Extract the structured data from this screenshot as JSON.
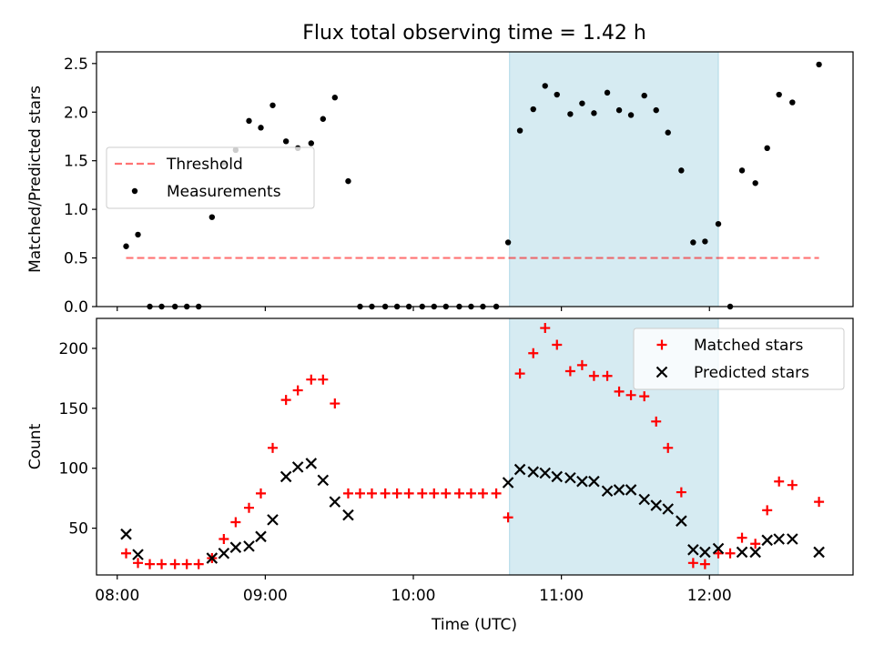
{
  "title": "Flux total observing time = 1.42 h",
  "colors": {
    "highlight": "#add8e6",
    "threshold": "#ff0000",
    "measurements": "#000000",
    "matched": "#ff0000",
    "predicted": "#000000"
  },
  "x_axis": {
    "label": "Time (UTC)",
    "ticks": [
      {
        "x": 8.0,
        "label": "08:00"
      },
      {
        "x": 9.0,
        "label": "09:00"
      },
      {
        "x": 10.0,
        "label": "10:00"
      },
      {
        "x": 11.0,
        "label": "11:00"
      },
      {
        "x": 12.0,
        "label": "12:00"
      }
    ]
  },
  "highlight_span": [
    10.65,
    12.06
  ],
  "chart_data": [
    {
      "type": "scatter",
      "ylabel": "Matched/Predicted stars",
      "xlim": [
        7.86,
        12.97
      ],
      "ylim": [
        0,
        2.62
      ],
      "yticks": [
        0.0,
        0.5,
        1.0,
        1.5,
        2.0,
        2.5
      ],
      "ytick_labels": [
        "0.0",
        "0.5",
        "1.0",
        "1.5",
        "2.0",
        "2.5"
      ],
      "legend": "left",
      "threshold": {
        "name": "Threshold",
        "y": 0.5,
        "x_range": [
          8.06,
          12.74
        ]
      },
      "series": [
        {
          "name": "Measurements",
          "marker": "dot",
          "points": [
            [
              8.06,
              0.62
            ],
            [
              8.14,
              0.74
            ],
            [
              8.22,
              0
            ],
            [
              8.3,
              0
            ],
            [
              8.39,
              0
            ],
            [
              8.47,
              0
            ],
            [
              8.55,
              0
            ],
            [
              8.64,
              0.92
            ],
            [
              8.72,
              1.48
            ],
            [
              8.8,
              1.61
            ],
            [
              8.89,
              1.91
            ],
            [
              8.97,
              1.84
            ],
            [
              9.05,
              2.07
            ],
            [
              9.14,
              1.7
            ],
            [
              9.22,
              1.63
            ],
            [
              9.31,
              1.68
            ],
            [
              9.39,
              1.93
            ],
            [
              9.47,
              2.15
            ],
            [
              9.56,
              1.29
            ],
            [
              9.64,
              0
            ],
            [
              9.72,
              0
            ],
            [
              9.81,
              0
            ],
            [
              9.89,
              0
            ],
            [
              9.97,
              0
            ],
            [
              10.06,
              0
            ],
            [
              10.14,
              0
            ],
            [
              10.22,
              0
            ],
            [
              10.31,
              0
            ],
            [
              10.39,
              0
            ],
            [
              10.47,
              0
            ],
            [
              10.56,
              0
            ],
            [
              10.64,
              0.66
            ],
            [
              10.72,
              1.81
            ],
            [
              10.81,
              2.03
            ],
            [
              10.89,
              2.27
            ],
            [
              10.97,
              2.18
            ],
            [
              11.06,
              1.98
            ],
            [
              11.14,
              2.09
            ],
            [
              11.22,
              1.99
            ],
            [
              11.31,
              2.2
            ],
            [
              11.39,
              2.02
            ],
            [
              11.47,
              1.97
            ],
            [
              11.56,
              2.17
            ],
            [
              11.64,
              2.02
            ],
            [
              11.72,
              1.79
            ],
            [
              11.81,
              1.4
            ],
            [
              11.89,
              0.66
            ],
            [
              11.97,
              0.67
            ],
            [
              12.06,
              0.85
            ],
            [
              12.14,
              0
            ],
            [
              12.22,
              1.4
            ],
            [
              12.31,
              1.27
            ],
            [
              12.39,
              1.63
            ],
            [
              12.47,
              2.18
            ],
            [
              12.56,
              2.1
            ],
            [
              12.74,
              2.49
            ]
          ]
        }
      ]
    },
    {
      "type": "scatter",
      "ylabel": "Count",
      "xlim": [
        7.86,
        12.97
      ],
      "ylim": [
        11,
        225
      ],
      "yticks": [
        50,
        100,
        150,
        200
      ],
      "ytick_labels": [
        "50",
        "100",
        "150",
        "200"
      ],
      "legend": "top-right",
      "series": [
        {
          "name": "Matched stars",
          "marker": "plus",
          "points": [
            [
              8.06,
              29
            ],
            [
              8.14,
              21
            ],
            [
              8.22,
              20
            ],
            [
              8.3,
              20
            ],
            [
              8.39,
              20
            ],
            [
              8.47,
              20
            ],
            [
              8.55,
              20
            ],
            [
              8.64,
              25
            ],
            [
              8.72,
              41
            ],
            [
              8.8,
              55
            ],
            [
              8.89,
              67
            ],
            [
              8.97,
              79
            ],
            [
              9.05,
              117
            ],
            [
              9.14,
              157
            ],
            [
              9.22,
              165
            ],
            [
              9.31,
              174
            ],
            [
              9.39,
              174
            ],
            [
              9.47,
              154
            ],
            [
              9.56,
              79
            ],
            [
              9.64,
              79
            ],
            [
              9.72,
              79
            ],
            [
              9.81,
              79
            ],
            [
              9.89,
              79
            ],
            [
              9.97,
              79
            ],
            [
              10.06,
              79
            ],
            [
              10.14,
              79
            ],
            [
              10.22,
              79
            ],
            [
              10.31,
              79
            ],
            [
              10.39,
              79
            ],
            [
              10.47,
              79
            ],
            [
              10.56,
              79
            ],
            [
              10.64,
              59
            ],
            [
              10.72,
              179
            ],
            [
              10.81,
              196
            ],
            [
              10.89,
              217
            ],
            [
              10.97,
              203
            ],
            [
              11.06,
              181
            ],
            [
              11.14,
              186
            ],
            [
              11.22,
              177
            ],
            [
              11.31,
              177
            ],
            [
              11.39,
              164
            ],
            [
              11.47,
              161
            ],
            [
              11.56,
              160
            ],
            [
              11.64,
              139
            ],
            [
              11.72,
              117
            ],
            [
              11.81,
              80
            ],
            [
              11.89,
              21
            ],
            [
              11.97,
              20
            ],
            [
              12.06,
              29
            ],
            [
              12.14,
              29
            ],
            [
              12.22,
              42
            ],
            [
              12.31,
              37
            ],
            [
              12.39,
              65
            ],
            [
              12.47,
              89
            ],
            [
              12.56,
              86
            ],
            [
              12.74,
              72
            ]
          ]
        },
        {
          "name": "Predicted stars",
          "marker": "x",
          "points": [
            [
              8.06,
              45
            ],
            [
              8.14,
              28
            ],
            [
              8.64,
              25
            ],
            [
              8.72,
              29
            ],
            [
              8.8,
              34
            ],
            [
              8.89,
              35
            ],
            [
              8.97,
              43
            ],
            [
              9.05,
              57
            ],
            [
              9.14,
              93
            ],
            [
              9.22,
              101
            ],
            [
              9.31,
              104
            ],
            [
              9.39,
              90
            ],
            [
              9.47,
              72
            ],
            [
              9.56,
              61
            ],
            [
              10.64,
              88
            ],
            [
              10.72,
              99
            ],
            [
              10.81,
              97
            ],
            [
              10.89,
              96
            ],
            [
              10.97,
              93
            ],
            [
              11.06,
              92
            ],
            [
              11.14,
              89
            ],
            [
              11.22,
              89
            ],
            [
              11.31,
              81
            ],
            [
              11.39,
              82
            ],
            [
              11.47,
              82
            ],
            [
              11.56,
              74
            ],
            [
              11.64,
              69
            ],
            [
              11.72,
              66
            ],
            [
              11.81,
              56
            ],
            [
              11.89,
              32
            ],
            [
              11.97,
              30
            ],
            [
              12.06,
              33
            ],
            [
              12.22,
              30
            ],
            [
              12.31,
              30
            ],
            [
              12.39,
              40
            ],
            [
              12.47,
              41
            ],
            [
              12.56,
              41
            ],
            [
              12.74,
              30
            ]
          ]
        }
      ]
    }
  ]
}
